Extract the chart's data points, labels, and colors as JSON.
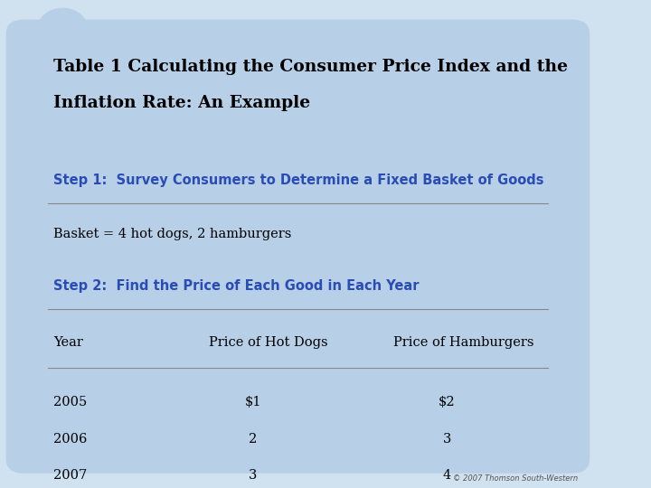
{
  "title_line1": "Table 1 Calculating the Consumer Price Index and the",
  "title_line2": "Inflation Rate: An Example",
  "step1_label": "Step 1:  Survey Consumers to Determine a Fixed Basket of Goods",
  "basket_text": "Basket = 4 hot dogs, 2 hamburgers",
  "step2_label": "Step 2:  Find the Price of Each Good in Each Year",
  "col_headers": [
    "Year",
    "Price of Hot Dogs",
    "Price of Hamburgers"
  ],
  "rows": [
    [
      "2005",
      "$1",
      "$2"
    ],
    [
      "2006",
      "2",
      "3"
    ],
    [
      "2007",
      "3",
      "4"
    ]
  ],
  "bg_color": "#b8cfe8",
  "outer_bg": "#d0e2f0",
  "title_color": "#000000",
  "step_color": "#2a4db5",
  "body_color": "#000000",
  "line_color": "#888888",
  "copyright_text": "© 2007 Thomson South-Western",
  "copyright_color": "#555555"
}
